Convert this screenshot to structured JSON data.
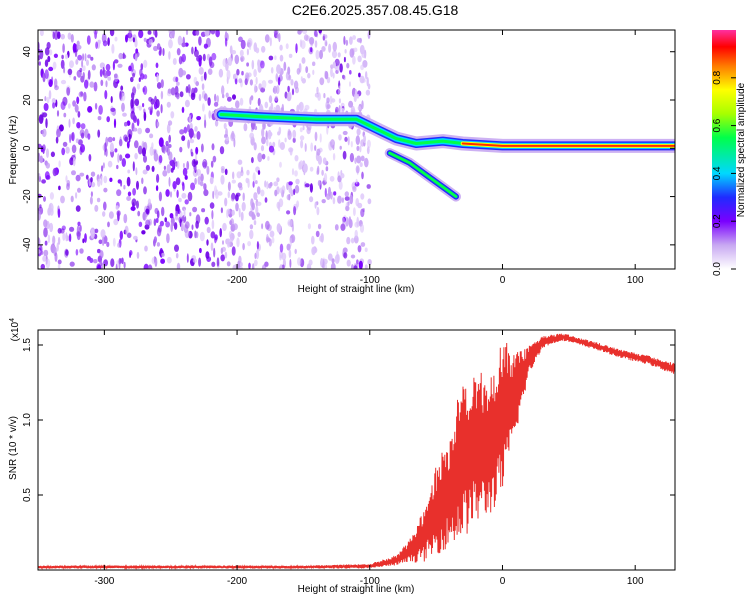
{
  "title": "C2E6.2025.357.08.45.G18",
  "chart_data": [
    {
      "type": "heatmap",
      "xlabel": "Height of straight line (km)",
      "ylabel": "Frequency (Hz)",
      "xlim": [
        -350,
        130
      ],
      "ylim": [
        -50,
        49
      ],
      "xticks": [
        -300,
        -200,
        -100,
        0,
        100
      ],
      "yticks": [
        -40,
        -20,
        0,
        20,
        40
      ],
      "colorbar": {
        "label": "Normalized spectral amplitude",
        "range": [
          0,
          1
        ],
        "ticks": [
          0,
          0.2,
          0.4,
          0.6,
          0.8
        ]
      },
      "noise_region_km": [
        -350,
        -100
      ],
      "tonal_track": [
        {
          "x": -212,
          "y": 14
        },
        {
          "x": -180,
          "y": 13
        },
        {
          "x": -140,
          "y": 12
        },
        {
          "x": -110,
          "y": 12
        },
        {
          "x": -95,
          "y": 8
        },
        {
          "x": -80,
          "y": 4
        },
        {
          "x": -65,
          "y": 2
        },
        {
          "x": -45,
          "y": 3
        },
        {
          "x": -30,
          "y": 2
        },
        {
          "x": 0,
          "y": 1
        },
        {
          "x": 50,
          "y": 1
        },
        {
          "x": 130,
          "y": 1
        }
      ],
      "spread_track": [
        {
          "x": -85,
          "y": -2
        },
        {
          "x": -70,
          "y": -6
        },
        {
          "x": -55,
          "y": -12
        },
        {
          "x": -45,
          "y": -16
        },
        {
          "x": -35,
          "y": -20
        }
      ]
    },
    {
      "type": "line",
      "xlabel": "Height of straight line (km)",
      "ylabel": "SNR (10 * v/v)",
      "scale_label": "(x10",
      "scale_exp": "4",
      "xlim": [
        -350,
        130
      ],
      "ylim": [
        0,
        1.6
      ],
      "xticks": [
        -300,
        -200,
        -100,
        0,
        100
      ],
      "yticks": [
        0.5,
        1.0,
        1.5
      ],
      "ytick_labels": [
        "0.5",
        "1.0",
        "1.5"
      ],
      "color": "#e8302c",
      "envelope": [
        {
          "x": -350,
          "lo": 0.01,
          "hi": 0.03
        },
        {
          "x": -200,
          "lo": 0.01,
          "hi": 0.03
        },
        {
          "x": -150,
          "lo": 0.01,
          "hi": 0.03
        },
        {
          "x": -100,
          "lo": 0.01,
          "hi": 0.04
        },
        {
          "x": -80,
          "lo": 0.03,
          "hi": 0.1
        },
        {
          "x": -70,
          "lo": 0.05,
          "hi": 0.2
        },
        {
          "x": -60,
          "lo": 0.05,
          "hi": 0.4
        },
        {
          "x": -50,
          "lo": 0.1,
          "hi": 0.7
        },
        {
          "x": -40,
          "lo": 0.15,
          "hi": 0.9
        },
        {
          "x": -30,
          "lo": 0.2,
          "hi": 1.3
        },
        {
          "x": -20,
          "lo": 0.3,
          "hi": 1.35
        },
        {
          "x": -10,
          "lo": 0.35,
          "hi": 1.3
        },
        {
          "x": 0,
          "lo": 0.5,
          "hi": 1.55
        },
        {
          "x": 10,
          "lo": 0.9,
          "hi": 1.45
        },
        {
          "x": 20,
          "lo": 1.3,
          "hi": 1.5
        },
        {
          "x": 30,
          "lo": 1.48,
          "hi": 1.56
        },
        {
          "x": 45,
          "lo": 1.53,
          "hi": 1.58
        },
        {
          "x": 70,
          "lo": 1.47,
          "hi": 1.52
        },
        {
          "x": 90,
          "lo": 1.41,
          "hi": 1.47
        },
        {
          "x": 110,
          "lo": 1.37,
          "hi": 1.43
        },
        {
          "x": 130,
          "lo": 1.3,
          "hi": 1.38
        }
      ]
    }
  ]
}
